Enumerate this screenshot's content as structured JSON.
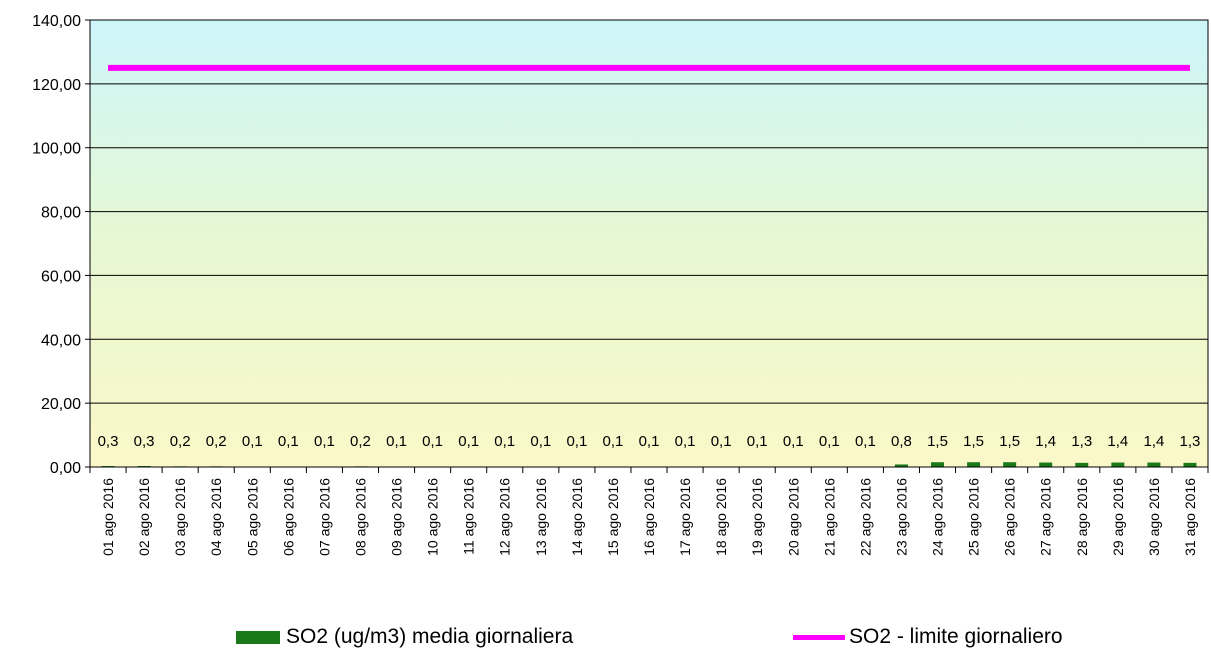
{
  "chart_data": {
    "type": "bar",
    "categories": [
      "01 ago 2016",
      "02 ago 2016",
      "03 ago 2016",
      "04 ago 2016",
      "05 ago 2016",
      "06 ago 2016",
      "07 ago 2016",
      "08 ago 2016",
      "09 ago 2016",
      "10 ago 2016",
      "11 ago 2016",
      "12 ago 2016",
      "13 ago 2016",
      "14 ago 2016",
      "15 ago 2016",
      "16 ago 2016",
      "17 ago 2016",
      "18 ago 2016",
      "19 ago 2016",
      "20 ago 2016",
      "21 ago 2016",
      "22 ago 2016",
      "23 ago 2016",
      "24 ago 2016",
      "25 ago 2016",
      "26 ago 2016",
      "27 ago 2016",
      "28 ago 2016",
      "29 ago 2016",
      "30 ago 2016",
      "31 ago 2016"
    ],
    "series": [
      {
        "name": "SO2 (ug/m3) media giornaliera",
        "kind": "bar",
        "color": "#1a7a1a",
        "values": [
          0.3,
          0.3,
          0.2,
          0.2,
          0.1,
          0.1,
          0.1,
          0.2,
          0.1,
          0.1,
          0.1,
          0.1,
          0.1,
          0.1,
          0.1,
          0.1,
          0.1,
          0.1,
          0.1,
          0.1,
          0.1,
          0.1,
          0.8,
          1.5,
          1.5,
          1.5,
          1.4,
          1.3,
          1.4,
          1.4,
          1.3
        ],
        "labels": [
          "0,3",
          "0,3",
          "0,2",
          "0,2",
          "0,1",
          "0,1",
          "0,1",
          "0,2",
          "0,1",
          "0,1",
          "0,1",
          "0,1",
          "0,1",
          "0,1",
          "0,1",
          "0,1",
          "0,1",
          "0,1",
          "0,1",
          "0,1",
          "0,1",
          "0,1",
          "0,8",
          "1,5",
          "1,5",
          "1,5",
          "1,4",
          "1,3",
          "1,4",
          "1,4",
          "1,3"
        ]
      },
      {
        "name": "SO2 - limite giornaliero",
        "kind": "line",
        "color": "#ff00ff",
        "values": [
          125,
          125,
          125,
          125,
          125,
          125,
          125,
          125,
          125,
          125,
          125,
          125,
          125,
          125,
          125,
          125,
          125,
          125,
          125,
          125,
          125,
          125,
          125,
          125,
          125,
          125,
          125,
          125,
          125,
          125,
          125
        ]
      }
    ],
    "ylim": [
      0,
      140
    ],
    "yticks": [
      "0,00",
      "20,00",
      "40,00",
      "60,00",
      "80,00",
      "100,00",
      "120,00",
      "140,00"
    ],
    "grid": true,
    "legend_position": "bottom",
    "xlabel": "",
    "ylabel": "",
    "title": ""
  },
  "legend": {
    "bar_label": "SO2 (ug/m3) media giornaliera",
    "line_label": "SO2 - limite giornaliero"
  }
}
